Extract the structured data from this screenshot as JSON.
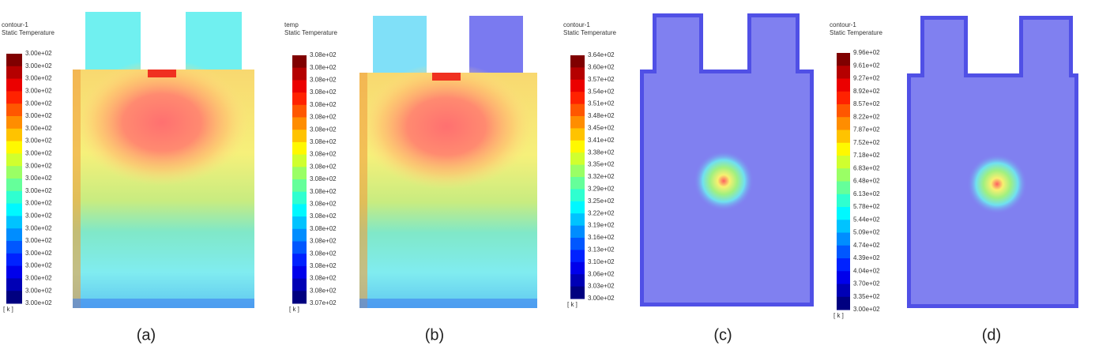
{
  "panels": [
    {
      "title_lines": [
        "contour-1",
        "Static Temperature"
      ],
      "scale_labels": [
        "3.00e+02",
        "3.00e+02",
        "3.00e+02",
        "3.00e+02",
        "3.00e+02",
        "3.00e+02",
        "3.00e+02",
        "3.00e+02",
        "3.00e+02",
        "3.00e+02",
        "3.00e+02",
        "3.00e+02",
        "3.00e+02",
        "3.00e+02",
        "3.00e+02",
        "3.00e+02",
        "3.00e+02",
        "3.00e+02",
        "3.00e+02",
        "3.00e+02",
        "3.00e+02"
      ],
      "unit": "[ k ]",
      "caption": "(a)"
    },
    {
      "title_lines": [
        "temp",
        "Static Temperature"
      ],
      "scale_labels": [
        "3.08e+02",
        "3.08e+02",
        "3.08e+02",
        "3.08e+02",
        "3.08e+02",
        "3.08e+02",
        "3.08e+02",
        "3.08e+02",
        "3.08e+02",
        "3.08e+02",
        "3.08e+02",
        "3.08e+02",
        "3.08e+02",
        "3.08e+02",
        "3.08e+02",
        "3.08e+02",
        "3.08e+02",
        "3.08e+02",
        "3.08e+02",
        "3.08e+02",
        "3.07e+02"
      ],
      "unit": "[ k ]",
      "caption": "(b)"
    },
    {
      "title_lines": [
        "contour-1",
        "Static Temperature"
      ],
      "scale_labels": [
        "3.64e+02",
        "3.60e+02",
        "3.57e+02",
        "3.54e+02",
        "3.51e+02",
        "3.48e+02",
        "3.45e+02",
        "3.41e+02",
        "3.38e+02",
        "3.35e+02",
        "3.32e+02",
        "3.29e+02",
        "3.25e+02",
        "3.22e+02",
        "3.19e+02",
        "3.16e+02",
        "3.13e+02",
        "3.10e+02",
        "3.06e+02",
        "3.03e+02",
        "3.00e+02"
      ],
      "unit": "[ k ]",
      "caption": "(c)"
    },
    {
      "title_lines": [
        "contour-1",
        "Static Temperature"
      ],
      "scale_labels": [
        "9.96e+02",
        "9.61e+02",
        "9.27e+02",
        "8.92e+02",
        "8.57e+02",
        "8.22e+02",
        "7.87e+02",
        "7.52e+02",
        "7.18e+02",
        "6.83e+02",
        "6.48e+02",
        "6.13e+02",
        "5.78e+02",
        "5.44e+02",
        "5.09e+02",
        "4.74e+02",
        "4.39e+02",
        "4.04e+02",
        "3.70e+02",
        "3.35e+02",
        "3.00e+02"
      ],
      "unit": "[ k ]",
      "caption": "(d)"
    }
  ]
}
